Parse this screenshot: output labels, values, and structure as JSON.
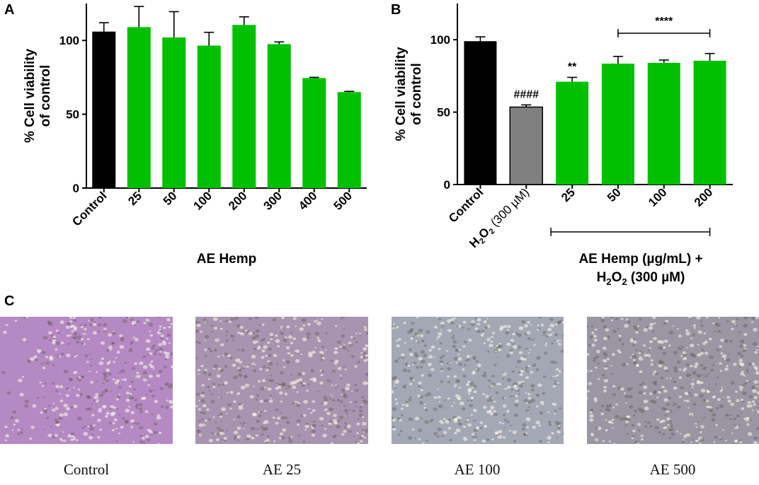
{
  "panels": {
    "A": "A",
    "B": "B",
    "C": "C"
  },
  "chart_data": [
    {
      "type": "bar",
      "panel": "A",
      "categories": [
        "Control",
        "25",
        "50",
        "100",
        "200",
        "300",
        "400",
        "500"
      ],
      "values": [
        106,
        109,
        102,
        96.5,
        110.5,
        97.5,
        74.5,
        65
      ],
      "errors": [
        6,
        14,
        17.5,
        9,
        5.5,
        1.5,
        0.5,
        0.5
      ],
      "colors": [
        "#000000",
        "#00c000",
        "#00c000",
        "#00c000",
        "#00c000",
        "#00c000",
        "#00c000",
        "#00c000"
      ],
      "ylabel_line1": "% Cell viability",
      "ylabel_line2": "of control",
      "xlabel": "AE Hemp",
      "yticks": [
        0,
        50,
        100
      ],
      "ylim": [
        0,
        125
      ],
      "grid": false
    },
    {
      "type": "bar",
      "panel": "B",
      "categories": [
        "Control",
        "H2O2 (300 µM)",
        "25",
        "50",
        "100",
        "200"
      ],
      "values": [
        99,
        53.5,
        71,
        83.5,
        84,
        85.5
      ],
      "errors": [
        3,
        1.5,
        3,
        5,
        2,
        5
      ],
      "colors": [
        "#000000",
        "#808080",
        "#00c000",
        "#00c000",
        "#00c000",
        "#00c000"
      ],
      "annotations": [
        "",
        "####",
        "**",
        "",
        "",
        ""
      ],
      "bracket_label": "****",
      "ylabel_line1": "% Cell viability",
      "ylabel_line2": "of control",
      "xlabel_line1": "AE Hemp (µg/mL) +",
      "xlabel_line2": "H2O2 (300 µM)",
      "yticks": [
        0,
        50,
        100
      ],
      "ylim": [
        0,
        125
      ],
      "grid": false
    }
  ],
  "photos": [
    {
      "caption": "Control",
      "tone": "#b58ac4"
    },
    {
      "caption": "AE 25",
      "tone": "#a894b0"
    },
    {
      "caption": "AE 100",
      "tone": "#a4a7b4"
    },
    {
      "caption": "AE 500",
      "tone": "#9a96a3"
    }
  ]
}
